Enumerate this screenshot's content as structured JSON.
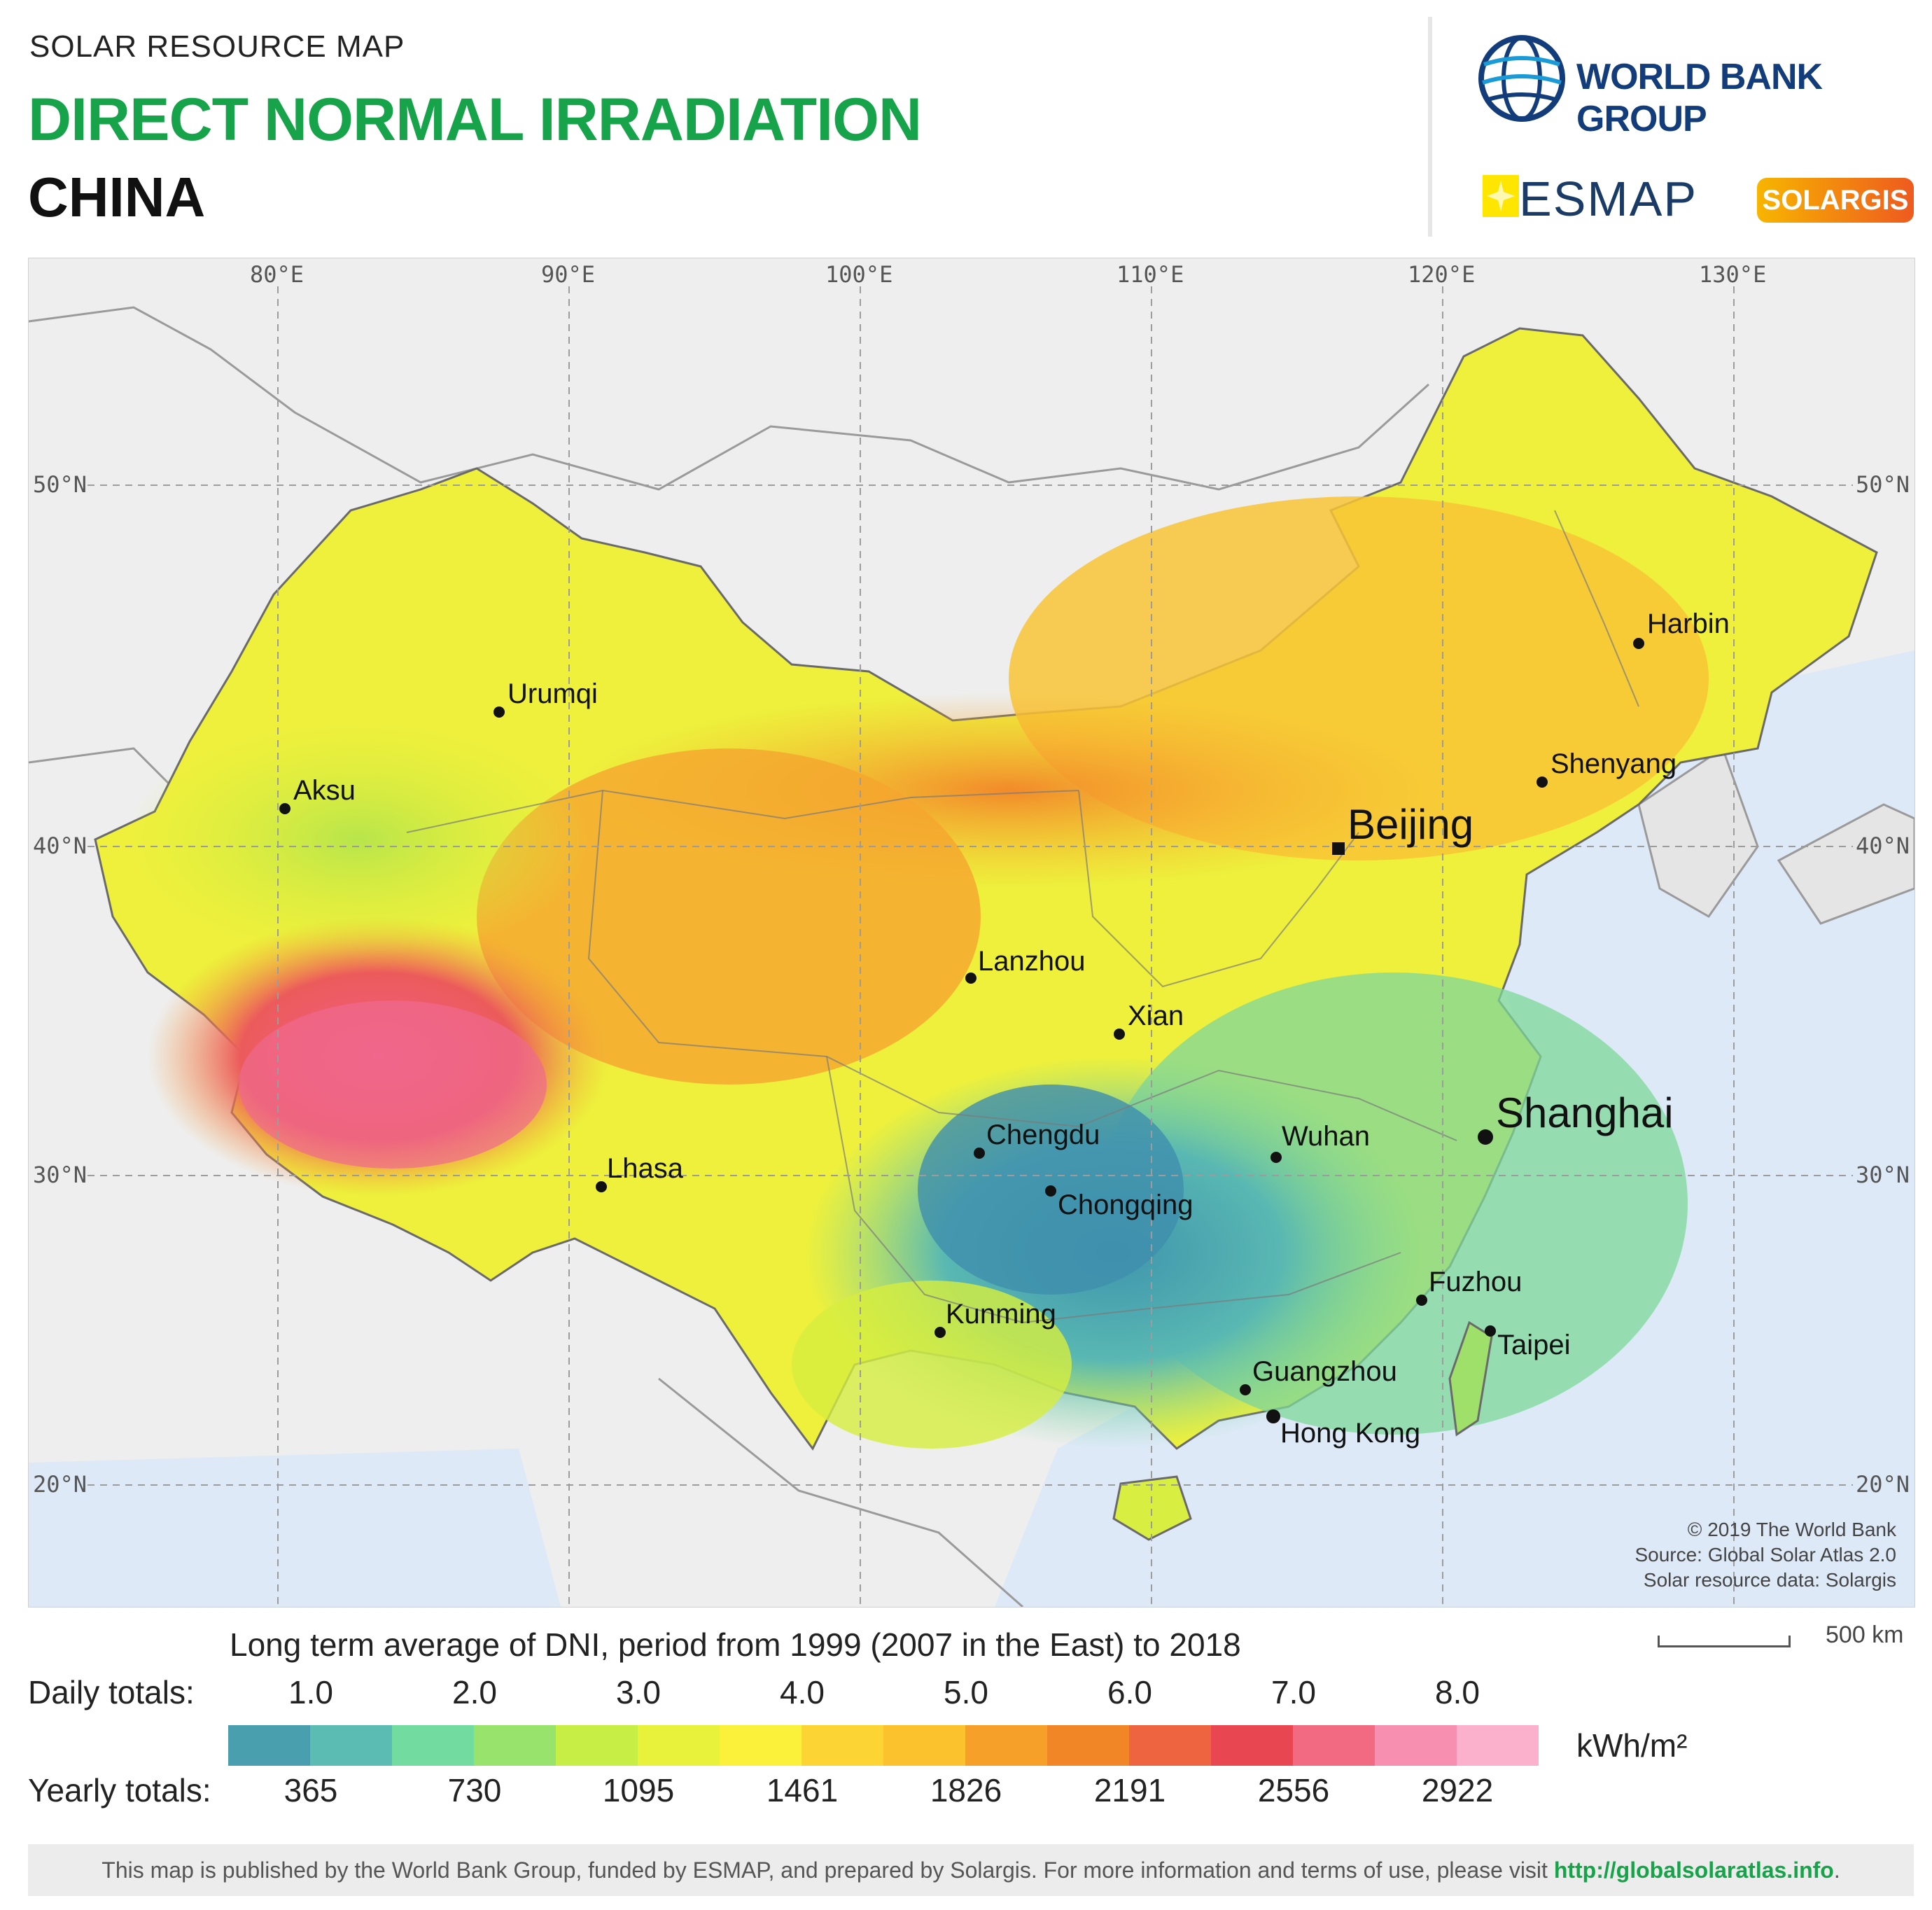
{
  "header": {
    "subtitle": "SOLAR RESOURCE MAP",
    "title": "DIRECT NORMAL IRRADIATION",
    "country": "CHINA",
    "wbg_label": "WORLD BANK GROUP",
    "esmap_label": "ESMAP",
    "solargis_label": "SOLARGIS",
    "colors": {
      "title": "#16a34a",
      "wbg": "#123d7a"
    }
  },
  "map": {
    "longitude_ticks": [
      "80°E",
      "90°E",
      "100°E",
      "110°E",
      "120°E",
      "130°E"
    ],
    "latitude_ticks": [
      "50°N",
      "40°N",
      "30°N",
      "20°N"
    ],
    "cities": [
      {
        "name": "Urumqi"
      },
      {
        "name": "Aksu"
      },
      {
        "name": "Harbin"
      },
      {
        "name": "Shenyang"
      },
      {
        "name": "Beijing"
      },
      {
        "name": "Lanzhou"
      },
      {
        "name": "Xian"
      },
      {
        "name": "Chengdu"
      },
      {
        "name": "Chongqing"
      },
      {
        "name": "Wuhan"
      },
      {
        "name": "Shanghai"
      },
      {
        "name": "Lhasa"
      },
      {
        "name": "Kunming"
      },
      {
        "name": "Fuzhou"
      },
      {
        "name": "Taipei"
      },
      {
        "name": "Guangzhou"
      },
      {
        "name": "Hong Kong"
      }
    ],
    "credits": [
      "© 2019 The World Bank",
      "Source: Global Solar Atlas 2.0",
      "Solar resource data: Solargis"
    ],
    "scale": "500 km"
  },
  "legend": {
    "caption": "Long term average of DNI, period from 1999 (2007 in the East) to 2018",
    "daily_label": "Daily totals:",
    "yearly_label": "Yearly totals:",
    "daily_values": [
      "1.0",
      "2.0",
      "3.0",
      "4.0",
      "5.0",
      "6.0",
      "7.0",
      "8.0"
    ],
    "yearly_values": [
      "365",
      "730",
      "1095",
      "1461",
      "1826",
      "2191",
      "2556",
      "2922"
    ],
    "unit": "kWh/m²",
    "colors": [
      "#4a9fae",
      "#5bbcb3",
      "#72dba0",
      "#98e36b",
      "#c7ee44",
      "#e8f23a",
      "#fbf03a",
      "#fcd535",
      "#fbc22e",
      "#f6a02a",
      "#f18626",
      "#ee6340",
      "#e84650",
      "#f26a82",
      "#f78fb0",
      "#fbb0cc"
    ]
  },
  "footer": {
    "text": "This map is published by the World Bank Group, funded by ESMAP, and prepared by Solargis. For more information and terms of use, please visit ",
    "link": "http://globalsolaratlas.info",
    "tail": "."
  }
}
